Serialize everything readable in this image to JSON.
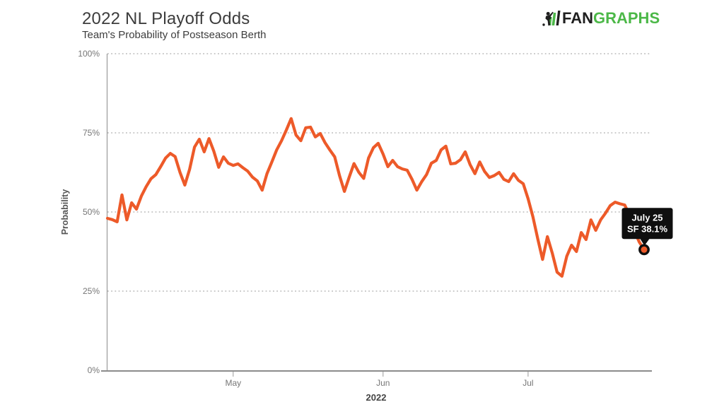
{
  "header": {
    "title": "2022 NL Playoff Odds",
    "subtitle": "Team's Probability of Postseason Berth",
    "logo": {
      "fan": "FAN",
      "graphs": "GRAPHS",
      "brand_green": "#4cb848",
      "brand_black": "#1f1f1f",
      "icon": "fangraphs-batter-icon"
    }
  },
  "tooltip": {
    "line1": "July 25",
    "line2": "SF 38.1%"
  },
  "chart_data": {
    "type": "line",
    "title": "2022 NL Playoff Odds",
    "subtitle": "Team's Probability of Postseason Berth",
    "xlabel": "2022",
    "ylabel": "Probability",
    "ylim": [
      0,
      100
    ],
    "grid": "horizontal-dotted",
    "legend": "none",
    "yticks": [
      {
        "value": 0,
        "label": "0%"
      },
      {
        "value": 25,
        "label": "25%"
      },
      {
        "value": 50,
        "label": "50%"
      },
      {
        "value": 75,
        "label": "75%"
      },
      {
        "value": 100,
        "label": "100%"
      }
    ],
    "xticks": [
      {
        "day": 26,
        "label": "May"
      },
      {
        "day": 57,
        "label": "Jun"
      },
      {
        "day": 87,
        "label": "Jul"
      }
    ],
    "series": [
      {
        "name": "SF",
        "color": "#ED5A29",
        "start_date": "2022-04-05",
        "cadence": "daily",
        "unit": "percent",
        "values": [
          48.0,
          47.6,
          46.9,
          55.4,
          47.5,
          52.9,
          50.9,
          55.0,
          58.0,
          60.5,
          61.8,
          64.3,
          67.0,
          68.5,
          67.5,
          62.5,
          58.5,
          63.5,
          70.5,
          73.0,
          69.0,
          73.2,
          69.2,
          64.1,
          67.4,
          65.4,
          64.7,
          65.2,
          64.0,
          62.9,
          61.0,
          59.8,
          56.9,
          62.1,
          65.8,
          69.6,
          72.5,
          75.9,
          79.5,
          74.3,
          72.5,
          76.6,
          76.8,
          73.7,
          74.8,
          71.9,
          69.6,
          67.4,
          61.5,
          56.5,
          61.0,
          65.3,
          62.5,
          60.6,
          67.0,
          70.3,
          71.7,
          68.3,
          64.3,
          66.3,
          64.3,
          63.6,
          63.2,
          60.3,
          56.9,
          59.6,
          61.8,
          65.4,
          66.3,
          69.6,
          70.8,
          65.2,
          65.4,
          66.5,
          69.0,
          65.0,
          62.1,
          65.8,
          62.8,
          60.9,
          61.5,
          62.5,
          60.3,
          59.6,
          62.1,
          60.0,
          58.9,
          54.2,
          48.5,
          41.5,
          35.0,
          42.2,
          37.0,
          31.0,
          29.7,
          36.0,
          39.5,
          37.5,
          43.5,
          41.3,
          47.5,
          44.2,
          47.5,
          49.6,
          52.0,
          53.1,
          52.6,
          52.2,
          49.0,
          44.0,
          40.5,
          38.1
        ]
      }
    ],
    "end_point": {
      "date": "July 25",
      "team": "SF",
      "value": 38.1
    }
  }
}
